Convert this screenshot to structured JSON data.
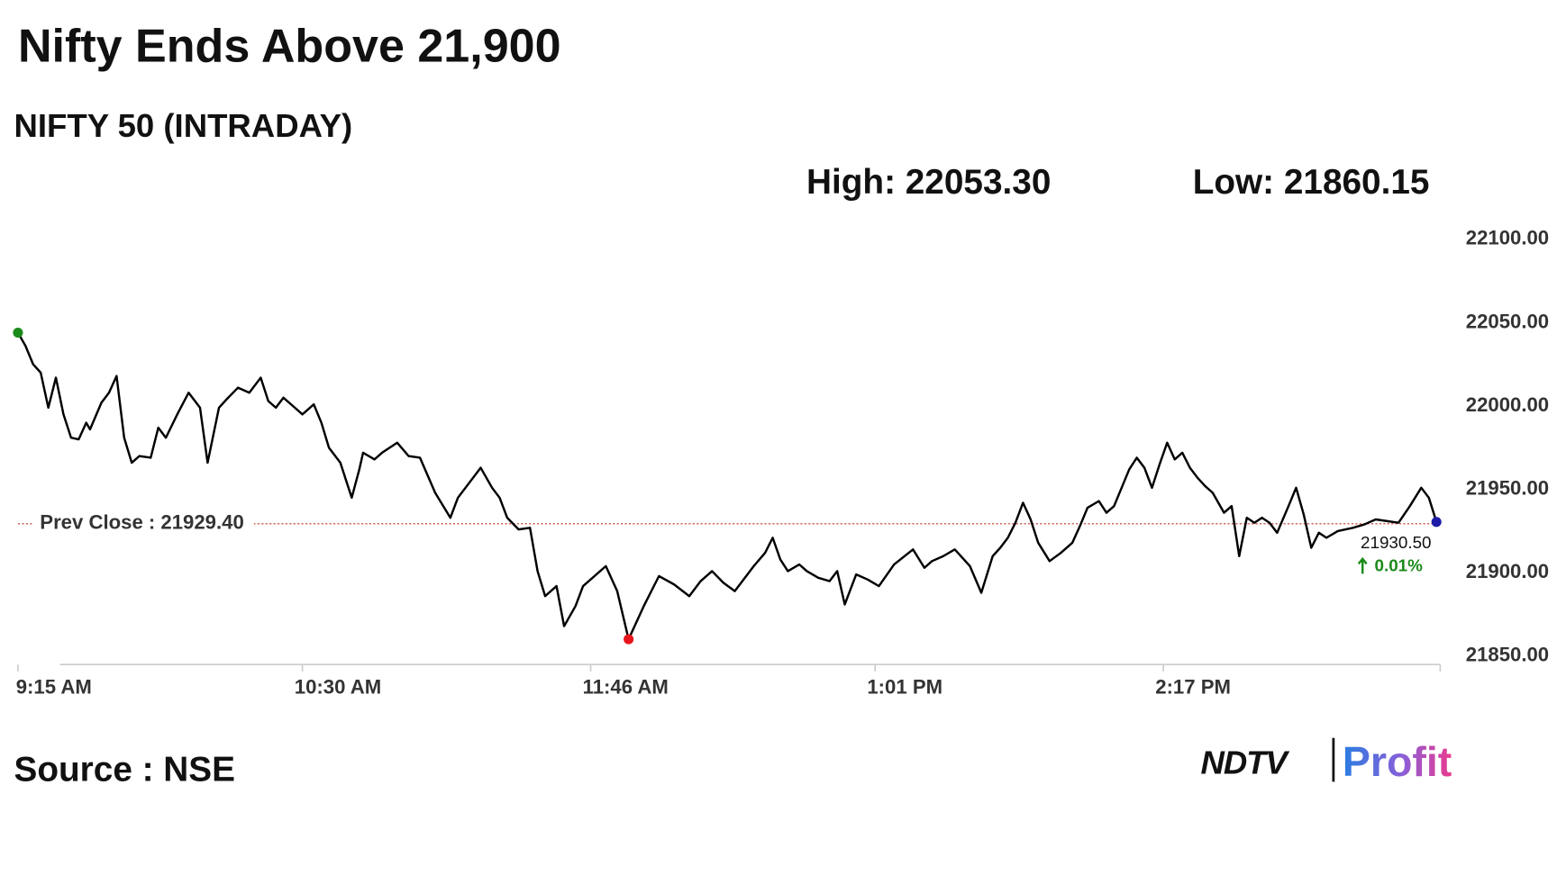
{
  "chart_data": {
    "type": "line",
    "title": "Nifty Ends Above 21,900",
    "subtitle": "NIFTY 50 (INTRADAY)",
    "high_label": "High: 22053.30",
    "low_label": "Low: 21860.15",
    "color": "#000000",
    "x": [
      "9:15 AM",
      "9:17 AM",
      "9:19 AM",
      "9:21 AM",
      "9:23 AM",
      "9:25 AM",
      "9:27 AM",
      "9:29 AM",
      "9:31 AM",
      "9:33 AM",
      "9:34 AM",
      "9:37 AM",
      "9:39 AM",
      "9:41 AM",
      "9:43 AM",
      "9:45 AM",
      "9:47 AM",
      "9:50 AM",
      "9:52 AM",
      "9:54 AM",
      "9:57 AM",
      "10:00 AM",
      "10:03 AM",
      "10:05 AM",
      "10:08 AM",
      "10:10 AM",
      "10:13 AM",
      "10:16 AM",
      "10:19 AM",
      "10:21 AM",
      "10:23 AM",
      "10:25 AM",
      "10:28 AM",
      "10:30 AM",
      "10:33 AM",
      "10:35 AM",
      "10:37 AM",
      "10:40 AM",
      "10:43 AM",
      "10:45 AM",
      "10:46 AM",
      "10:49 AM",
      "10:51 AM",
      "10:55 AM",
      "10:58 AM",
      "11:01 AM",
      "11:05 AM",
      "11:09 AM",
      "11:11 AM",
      "11:13 AM",
      "11:17 AM",
      "11:20 AM",
      "11:22 AM",
      "11:24 AM",
      "11:27 AM",
      "11:30 AM",
      "11:32 AM",
      "11:34 AM",
      "11:37 AM",
      "11:39 AM",
      "11:42 AM",
      "11:44 AM",
      "11:47 AM",
      "11:50 AM",
      "11:53 AM",
      "11:56 AM",
      "12:00 PM",
      "12:04 PM",
      "12:08 PM",
      "12:12 PM",
      "12:15 PM",
      "12:18 PM",
      "12:21 PM",
      "12:24 PM",
      "12:27 PM",
      "12:29 PM",
      "12:32 PM",
      "12:34 PM",
      "12:36 PM",
      "12:38 PM",
      "12:41 PM",
      "12:43 PM",
      "12:46 PM",
      "12:49 PM",
      "12:51 PM",
      "12:53 PM",
      "12:56 PM",
      "12:59 PM",
      "1:02 PM",
      "1:06 PM",
      "1:11 PM",
      "1:14 PM",
      "1:16 PM",
      "1:19 PM",
      "1:22 PM",
      "1:26 PM",
      "1:29 PM",
      "1:32 PM",
      "1:34 PM",
      "1:36 PM",
      "1:38 PM",
      "1:40 PM",
      "1:42 PM",
      "1:44 PM",
      "1:47 PM",
      "1:50 PM",
      "1:53 PM",
      "1:55 PM",
      "1:57 PM",
      "2:00 PM",
      "2:02 PM",
      "2:04 PM",
      "2:06 PM",
      "2:08 PM",
      "2:10 PM",
      "2:12 PM",
      "2:14 PM",
      "2:16 PM",
      "2:18 PM",
      "2:20 PM",
      "2:22 PM",
      "2:24 PM",
      "2:26 PM",
      "2:28 PM",
      "2:30 PM",
      "2:33 PM",
      "2:35 PM",
      "2:37 PM",
      "2:39 PM",
      "2:41 PM",
      "2:43 PM",
      "2:45 PM",
      "2:47 PM",
      "2:50 PM",
      "2:52 PM",
      "2:54 PM",
      "2:56 PM",
      "2:58 PM",
      "3:00 PM",
      "3:03 PM",
      "3:07 PM",
      "3:10 PM",
      "3:13 PM",
      "3:16 PM",
      "3:19 PM",
      "3:22 PM",
      "3:25 PM",
      "3:27 PM",
      "3:29 PM"
    ],
    "values": [
      22044,
      22036,
      22025,
      22020,
      21999,
      22017,
      21995,
      21981,
      21980,
      21990,
      21986,
      22002,
      22008,
      22018,
      21981,
      21966,
      21970,
      21969,
      21987,
      21981,
      21995,
      22008,
      21999,
      21966,
      21999,
      22004,
      22011,
      22008,
      22017,
      22003,
      21999,
      22005,
      21999,
      21995,
      22001,
      21990,
      21975,
      21966,
      21945,
      21962,
      21972,
      21968,
      21972,
      21978,
      21970,
      21969,
      21948,
      21933,
      21945,
      21951,
      21963,
      21951,
      21945,
      21933,
      21926,
      21927,
      21901,
      21886,
      21892,
      21868,
      21880,
      21892,
      21898,
      21904,
      21889,
      21860.15,
      21880,
      21898,
      21893,
      21886,
      21895,
      21901,
      21894,
      21889,
      21898,
      21904,
      21912,
      21921,
      21908,
      21901,
      21905,
      21901,
      21897,
      21895,
      21901,
      21881,
      21899,
      21896,
      21892,
      21905,
      21914,
      21903,
      21907,
      21910,
      21914,
      21904,
      21888,
      21910,
      21915,
      21921,
      21930,
      21942,
      21932,
      21918,
      21907,
      21912,
      21918,
      21928,
      21939,
      21943,
      21936,
      21940,
      21951,
      21962,
      21969,
      21963,
      21951,
      21965,
      21978,
      21968,
      21972,
      21963,
      21957,
      21952,
      21948,
      21936,
      21940,
      21910,
      21933,
      21930,
      21933,
      21930,
      21924,
      21940,
      21951,
      21935,
      21915,
      21924,
      21921,
      21925,
      21927,
      21929,
      21932,
      21931,
      21930,
      21940,
      21951,
      21945,
      21930.5
    ],
    "xlim": [
      "9:15 AM",
      "3:30 PM"
    ],
    "xticks": [
      "9:15 AM",
      "10:30 AM",
      "11:46 AM",
      "1:01 PM",
      "2:17 PM"
    ],
    "ylim": [
      21845,
      22105
    ],
    "yticks": [
      {
        "value": 21850,
        "label": "21850.00"
      },
      {
        "value": 21900,
        "label": "21900.00"
      },
      {
        "value": 21950,
        "label": "21950.00"
      },
      {
        "value": 22000,
        "label": "22000.00"
      },
      {
        "value": 22050,
        "label": "22050.00"
      },
      {
        "value": 22100,
        "label": "22100.00"
      }
    ],
    "grid": false,
    "prev_close": {
      "value": 21929.4,
      "label": "Prev Close : 21929.40",
      "color": "#c0392b"
    },
    "last_value_label": "21930.50",
    "change_label": "0.01%",
    "change_color": "#1a8a1a",
    "start_marker_color": "#1a8a1a",
    "low_marker_color": "#e8141c",
    "end_marker_color": "#1c1ca8"
  },
  "footer": {
    "source": "Source : NSE",
    "brand": "NDTV",
    "brand_product": "Profit"
  }
}
